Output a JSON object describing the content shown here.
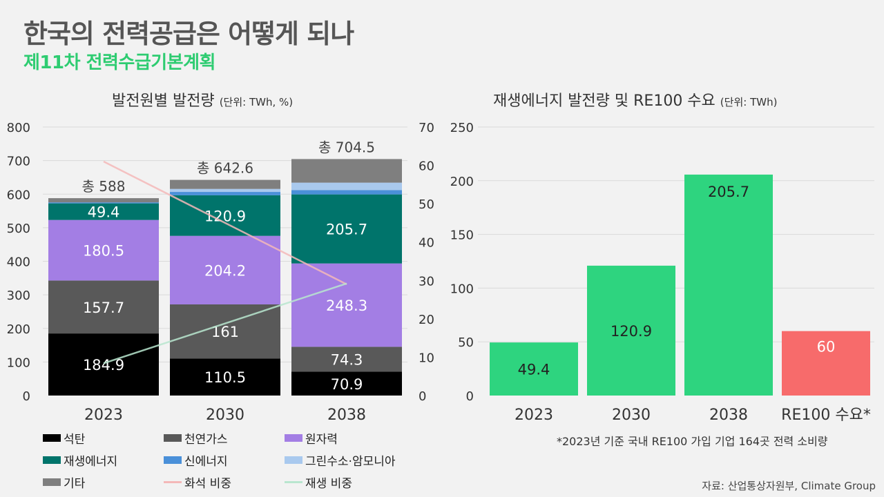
{
  "header": {
    "title": "한국의 전력공급은 어떻게 되나",
    "subtitle": "제11차 전력수급기본계획"
  },
  "chart_data": [
    {
      "type": "bar",
      "stacked": true,
      "title": "발전원별 발전량",
      "unit_label": "(단위: TWh, %)",
      "categories": [
        "2023",
        "2030",
        "2038"
      ],
      "ylim": [
        0,
        800
      ],
      "yticks": [
        "0",
        "100",
        "200",
        "300",
        "400",
        "500",
        "600",
        "700",
        "800"
      ],
      "y2lim": [
        0,
        70
      ],
      "y2ticks": [
        "0",
        "10",
        "20",
        "30",
        "40",
        "50",
        "60",
        "70"
      ],
      "totals": [
        "총 588",
        "총 642.6",
        "총 704.5"
      ],
      "series": [
        {
          "name": "석탄",
          "color": "#000000",
          "label_color": "#ffffff",
          "values": [
            184.9,
            110.5,
            70.9
          ],
          "labels": [
            "184.9",
            "110.5",
            "70.9"
          ]
        },
        {
          "name": "천연가스",
          "color": "#595959",
          "label_color": "#ffffff",
          "values": [
            157.7,
            161,
            74.3
          ],
          "labels": [
            "157.7",
            "161",
            "74.3"
          ]
        },
        {
          "name": "원자력",
          "color": "#a37ee4",
          "label_color": "#ffffff",
          "values": [
            180.5,
            204.2,
            248.3
          ],
          "labels": [
            "180.5",
            "204.2",
            "248.3"
          ]
        },
        {
          "name": "재생에너지",
          "color": "#00746b",
          "label_color": "#ffffff",
          "values": [
            49.4,
            120.9,
            205.7
          ],
          "labels": [
            "49.4",
            "120.9",
            "205.7"
          ]
        },
        {
          "name": "신에너지",
          "color": "#4a90d9",
          "label_color": "#ffffff",
          "values": [
            3,
            10,
            13
          ],
          "labels": [
            "",
            "",
            ""
          ]
        },
        {
          "name": "그린수소·암모니아",
          "color": "#a9c9ee",
          "label_color": "#ffffff",
          "values": [
            0,
            9,
            22
          ],
          "labels": [
            "",
            "",
            ""
          ]
        },
        {
          "name": "기타",
          "color": "#7f7f7f",
          "label_color": "#ffffff",
          "values": [
            12.5,
            26.9,
            70.3
          ],
          "labels": [
            "",
            "",
            ""
          ]
        }
      ],
      "lines": [
        {
          "name": "화석 비중",
          "color": "#f4b8b8",
          "x": [
            "2023",
            "2038"
          ],
          "values": [
            61,
            29
          ]
        },
        {
          "name": "재생 비중",
          "color": "#b9e6cf",
          "x": [
            "2023",
            "2038"
          ],
          "values": [
            8.4,
            29.2
          ]
        }
      ],
      "legend": [
        {
          "name": "석탄",
          "color": "#000000",
          "kind": "box"
        },
        {
          "name": "천연가스",
          "color": "#595959",
          "kind": "box"
        },
        {
          "name": "원자력",
          "color": "#a37ee4",
          "kind": "box"
        },
        {
          "name": "재생에너지",
          "color": "#00746b",
          "kind": "box"
        },
        {
          "name": "신에너지",
          "color": "#4a90d9",
          "kind": "box"
        },
        {
          "name": "그린수소·암모니아",
          "color": "#a9c9ee",
          "kind": "box"
        },
        {
          "name": "기타",
          "color": "#7f7f7f",
          "kind": "box"
        },
        {
          "name": "화석 비중",
          "color": "#f4b8b8",
          "kind": "line"
        },
        {
          "name": "재생 비중",
          "color": "#b9e6cf",
          "kind": "line"
        }
      ],
      "grid": true
    },
    {
      "type": "bar",
      "title": "재생에너지 발전량 및 RE100 수요",
      "unit_label": "(단위: TWh)",
      "categories": [
        "2023",
        "2030",
        "2038",
        "RE100 수요*"
      ],
      "values": [
        49.4,
        120.9,
        205.7,
        60
      ],
      "labels": [
        "49.4",
        "120.9",
        "205.7",
        "60"
      ],
      "colors": [
        "#2ed47f",
        "#2ed47f",
        "#2ed47f",
        "#f76b6b"
      ],
      "label_colors": [
        "#222222",
        "#222222",
        "#222222",
        "#ffffff"
      ],
      "ylim": [
        0,
        250
      ],
      "yticks": [
        "0",
        "50",
        "100",
        "150",
        "200",
        "250"
      ],
      "grid": true
    }
  ],
  "footnote": "*2023년 기준 국내 RE100 가입 기업 164곳 전력 소비량",
  "source": "자료: 산업통상자원부, Climate Group"
}
